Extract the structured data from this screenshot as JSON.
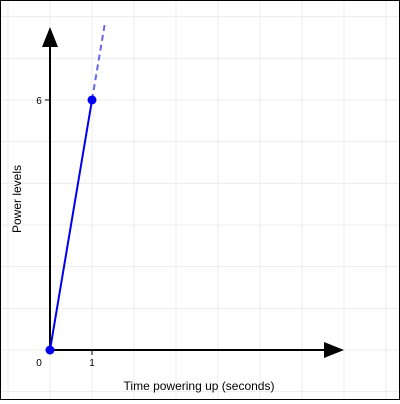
{
  "chart_data": {
    "type": "line",
    "title": "",
    "xlabel": "Time powering up (seconds)",
    "ylabel": "Power levels",
    "origin_label": "0",
    "x_ticks": [
      {
        "value": 1,
        "label": "1"
      }
    ],
    "y_ticks": [
      {
        "value": 6,
        "label": "6"
      }
    ],
    "xlim": [
      0,
      7
    ],
    "ylim": [
      0,
      7.75
    ],
    "grid": true,
    "series": [
      {
        "points": [
          {
            "x": 0,
            "y": 0
          },
          {
            "x": 1,
            "y": 6
          }
        ],
        "extension": {
          "to_x": 1.3,
          "style": "dashed"
        },
        "color": "#0000ee"
      }
    ]
  },
  "colors": {
    "series": "#0000ee",
    "extension": "#6666ee",
    "axes": "#000000",
    "grid": "#ececec"
  }
}
